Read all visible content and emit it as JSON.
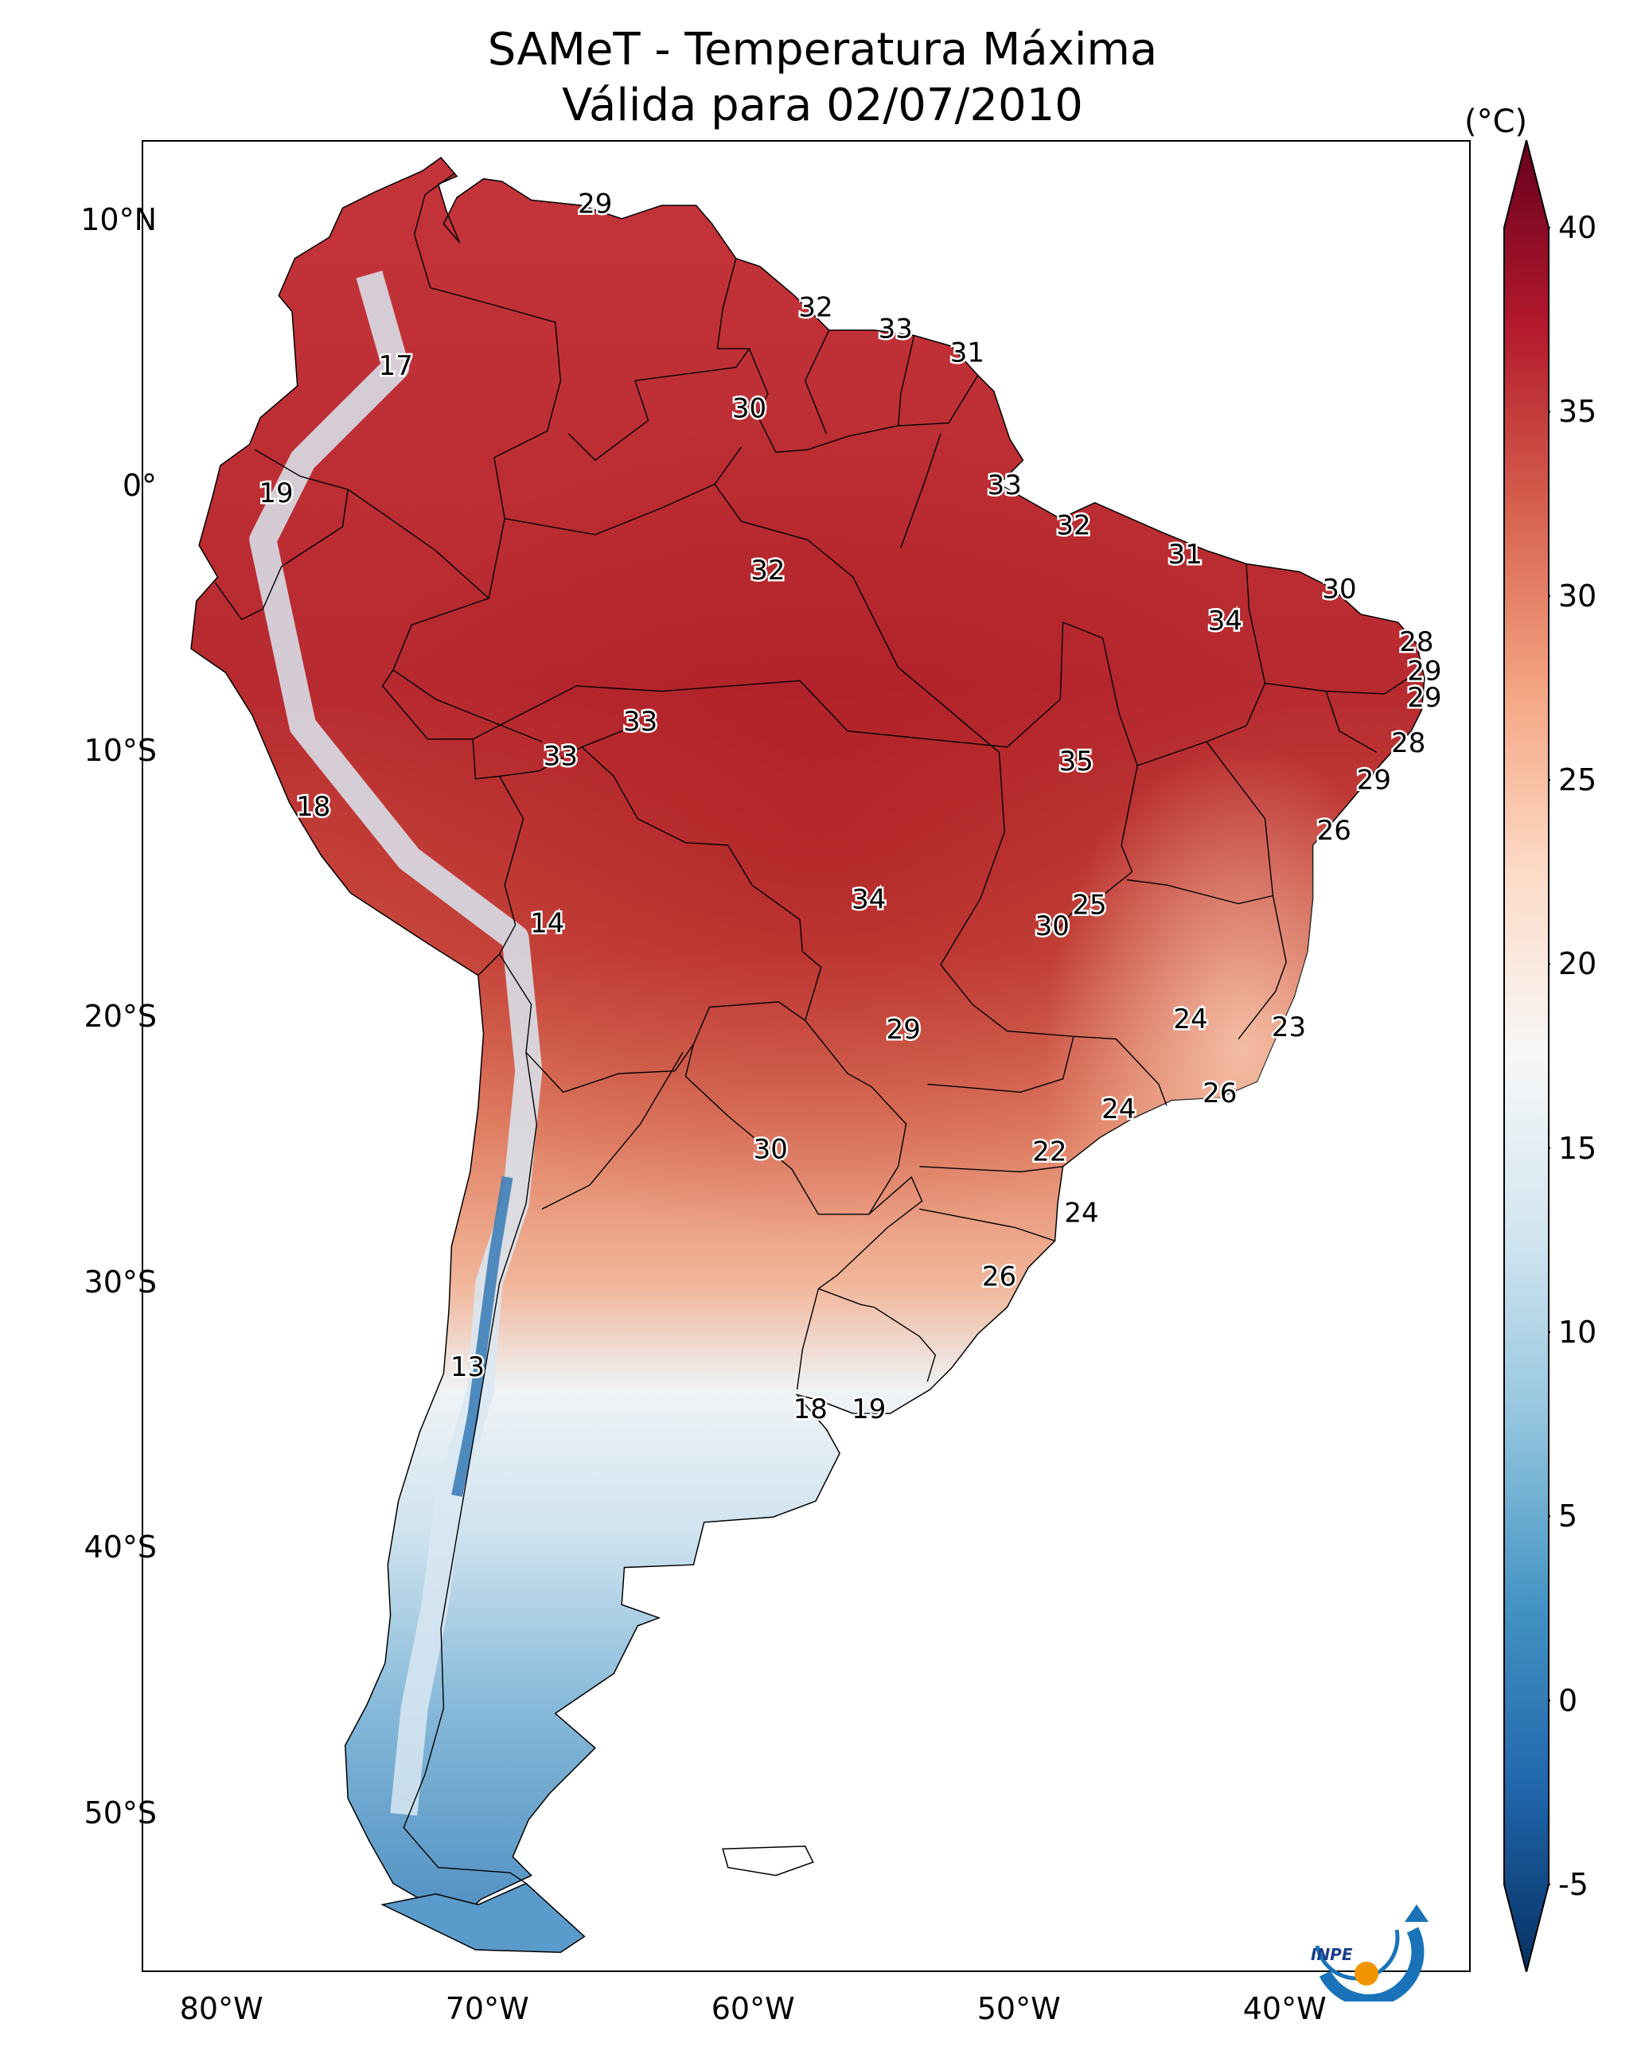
{
  "title": {
    "line1": "SAMeT - Temperatura Máxima",
    "line2": "Válida para 02/07/2010"
  },
  "colorbar": {
    "unit": "(°C)",
    "min": -7,
    "max": 42,
    "ticks": [
      "40",
      "35",
      "30",
      "25",
      "20",
      "15",
      "10",
      "5",
      "0",
      "-5"
    ],
    "tick_values": [
      40,
      35,
      30,
      25,
      20,
      15,
      10,
      5,
      0,
      -5
    ],
    "colors": [
      "#053061",
      "#2166ac",
      "#4393c3",
      "#92c5de",
      "#d1e5f0",
      "#f7f7f7",
      "#fddbc7",
      "#f4a582",
      "#d6604d",
      "#b2182b",
      "#67001f"
    ]
  },
  "axes": {
    "lat_labels": [
      "10°N",
      "0°",
      "10°S",
      "20°S",
      "30°S",
      "40°S",
      "50°S"
    ],
    "lat_values": [
      10,
      0,
      -10,
      -20,
      -30,
      -40,
      -50
    ],
    "lon_labels": [
      "80°W",
      "70°W",
      "60°W",
      "50°W",
      "40°W"
    ],
    "lon_values": [
      -80,
      -70,
      -60,
      -50,
      -40
    ],
    "lon_range": [
      -83,
      -33
    ],
    "lat_range": [
      -56,
      13
    ]
  },
  "logo": {
    "text": "INPE"
  },
  "labels": [
    {
      "t": "29",
      "lon": -66,
      "lat": 10.6
    },
    {
      "t": "32",
      "lon": -57.7,
      "lat": 6.7
    },
    {
      "t": "33",
      "lon": -54.7,
      "lat": 5.9
    },
    {
      "t": "31",
      "lon": -52,
      "lat": 5
    },
    {
      "t": "17",
      "lon": -73.5,
      "lat": 4.5
    },
    {
      "t": "30",
      "lon": -60.2,
      "lat": 2.9
    },
    {
      "t": "19",
      "lon": -78,
      "lat": -0.3
    },
    {
      "t": "33",
      "lon": -50.6,
      "lat": 0
    },
    {
      "t": "32",
      "lon": -48,
      "lat": -1.5
    },
    {
      "t": "31",
      "lon": -43.8,
      "lat": -2.6
    },
    {
      "t": "32",
      "lon": -59.5,
      "lat": -3.2
    },
    {
      "t": "30",
      "lon": -38,
      "lat": -3.9
    },
    {
      "t": "34",
      "lon": -42.3,
      "lat": -5.1
    },
    {
      "t": "28",
      "lon": -35.1,
      "lat": -5.9
    },
    {
      "t": "29",
      "lon": -34.8,
      "lat": -7
    },
    {
      "t": "29",
      "lon": -34.8,
      "lat": -8
    },
    {
      "t": "33",
      "lon": -64.3,
      "lat": -8.9
    },
    {
      "t": "28",
      "lon": -35.4,
      "lat": -9.7
    },
    {
      "t": "33",
      "lon": -67.3,
      "lat": -10.2
    },
    {
      "t": "35",
      "lon": -47.9,
      "lat": -10.4
    },
    {
      "t": "29",
      "lon": -36.7,
      "lat": -11.1
    },
    {
      "t": "18",
      "lon": -76.6,
      "lat": -12.1
    },
    {
      "t": "26",
      "lon": -38.2,
      "lat": -13
    },
    {
      "t": "34",
      "lon": -55.7,
      "lat": -15.6
    },
    {
      "t": "25",
      "lon": -47.4,
      "lat": -15.8
    },
    {
      "t": "14",
      "lon": -67.8,
      "lat": -16.5
    },
    {
      "t": "30",
      "lon": -48.8,
      "lat": -16.6
    },
    {
      "t": "24",
      "lon": -43.6,
      "lat": -20.1
    },
    {
      "t": "23",
      "lon": -39.9,
      "lat": -20.4
    },
    {
      "t": "29",
      "lon": -54.4,
      "lat": -20.5
    },
    {
      "t": "26",
      "lon": -42.5,
      "lat": -22.9
    },
    {
      "t": "24",
      "lon": -46.3,
      "lat": -23.5
    },
    {
      "t": "22",
      "lon": -48.9,
      "lat": -25.1
    },
    {
      "t": "30",
      "lon": -59.4,
      "lat": -25
    },
    {
      "t": "24",
      "lon": -47.7,
      "lat": -27.4
    },
    {
      "t": "26",
      "lon": -50.8,
      "lat": -29.8
    },
    {
      "t": "13",
      "lon": -70.8,
      "lat": -33.2
    },
    {
      "t": "18",
      "lon": -57.9,
      "lat": -34.8
    },
    {
      "t": "19",
      "lon": -55.7,
      "lat": -34.8
    }
  ]
}
